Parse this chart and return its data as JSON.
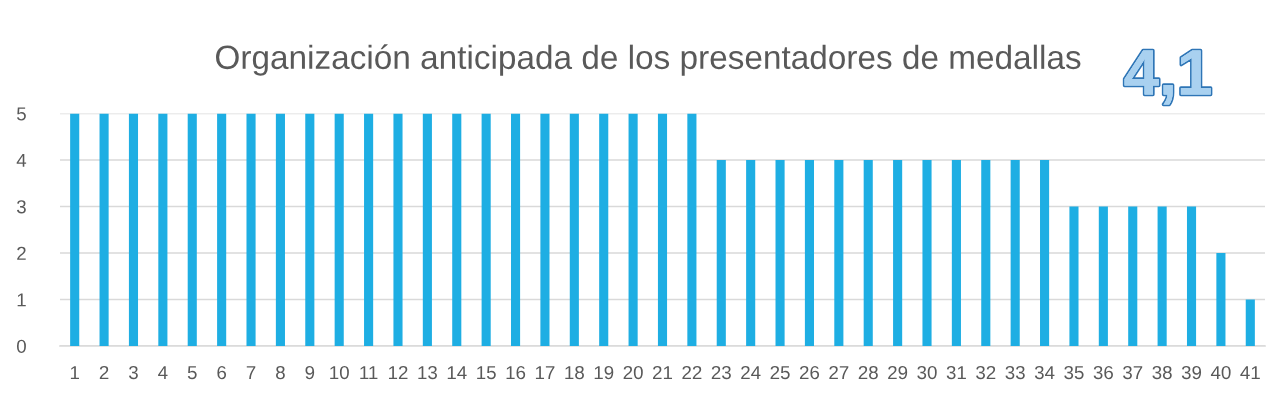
{
  "chart_data": {
    "type": "bar",
    "title": "Organización anticipada de los presentadores de medallas",
    "categories": [
      "1",
      "2",
      "3",
      "4",
      "5",
      "6",
      "7",
      "8",
      "9",
      "10",
      "11",
      "12",
      "13",
      "14",
      "15",
      "16",
      "17",
      "18",
      "19",
      "20",
      "21",
      "22",
      "23",
      "24",
      "25",
      "26",
      "27",
      "28",
      "29",
      "30",
      "31",
      "32",
      "33",
      "34",
      "35",
      "36",
      "37",
      "38",
      "39",
      "40",
      "41"
    ],
    "values": [
      5,
      5,
      5,
      5,
      5,
      5,
      5,
      5,
      5,
      5,
      5,
      5,
      5,
      5,
      5,
      5,
      5,
      5,
      5,
      5,
      5,
      5,
      4,
      4,
      4,
      4,
      4,
      4,
      4,
      4,
      4,
      4,
      4,
      4,
      3,
      3,
      3,
      3,
      3,
      2,
      1
    ],
    "color": "#1eaee3",
    "ylim": [
      0,
      5
    ],
    "yticks": [
      0,
      1,
      2,
      3,
      4,
      5
    ],
    "grid": "y",
    "annotations": [
      "4,1"
    ]
  }
}
